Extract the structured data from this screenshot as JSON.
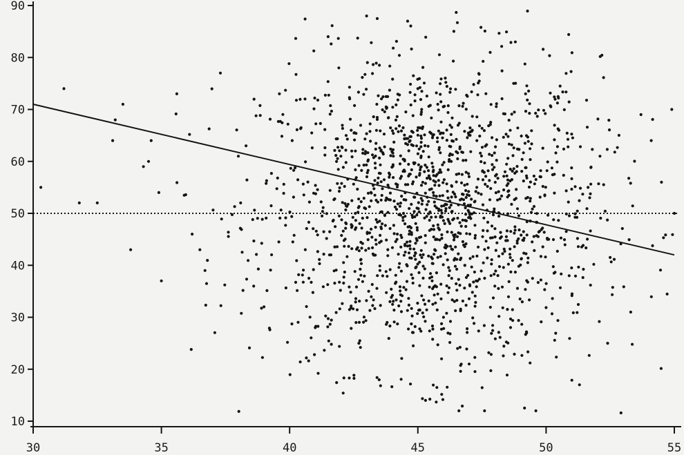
{
  "chart_data": {
    "type": "scatter",
    "title": "",
    "xlabel": "",
    "ylabel": "",
    "xlim": [
      30,
      55
    ],
    "ylim": [
      10,
      90
    ],
    "xticks": [
      "30",
      "35",
      "40",
      "45",
      "50",
      "55"
    ],
    "yticks": [
      "10",
      "20",
      "30",
      "40",
      "50",
      "60",
      "70",
      "80",
      "90"
    ],
    "grid": false,
    "legend": "none",
    "point_color": "#151515",
    "line_color": "#151515",
    "regression_line": {
      "x": [
        30,
        55
      ],
      "y": [
        71,
        42
      ]
    },
    "reference_line": {
      "y": 50,
      "style": "dotted"
    },
    "points_sample": [
      [
        30.3,
        55
      ],
      [
        31.2,
        74
      ],
      [
        31.8,
        52
      ],
      [
        32.5,
        52
      ],
      [
        33.1,
        64
      ],
      [
        33.2,
        68
      ],
      [
        33.5,
        71
      ],
      [
        33.8,
        43
      ],
      [
        34.3,
        59
      ],
      [
        34.5,
        60
      ],
      [
        34.6,
        64
      ],
      [
        34.9,
        54
      ],
      [
        35.0,
        37
      ],
      [
        35.6,
        73
      ],
      [
        36.2,
        46
      ],
      [
        36.5,
        43
      ],
      [
        36.7,
        39
      ],
      [
        37.3,
        77
      ],
      [
        38.0,
        61
      ],
      [
        38.3,
        63
      ],
      [
        38.6,
        36
      ],
      [
        39.0,
        32
      ],
      [
        39.6,
        73
      ],
      [
        40.1,
        64
      ],
      [
        40.6,
        72
      ],
      [
        41.0,
        28
      ],
      [
        41.5,
        84
      ],
      [
        42.0,
        61
      ],
      [
        42.4,
        66
      ],
      [
        42.7,
        25
      ],
      [
        43.0,
        88
      ],
      [
        43.4,
        71
      ],
      [
        43.8,
        29
      ],
      [
        44.2,
        46
      ],
      [
        44.6,
        87
      ],
      [
        45.0,
        74
      ],
      [
        45.3,
        14
      ],
      [
        45.6,
        54
      ],
      [
        46.0,
        30
      ],
      [
        46.3,
        60
      ],
      [
        46.6,
        12
      ],
      [
        47.0,
        21
      ],
      [
        47.3,
        64
      ],
      [
        47.6,
        12
      ],
      [
        48.0,
        36
      ],
      [
        48.4,
        58
      ],
      [
        48.8,
        83
      ],
      [
        49.2,
        73
      ],
      [
        49.6,
        12
      ],
      [
        50.1,
        45
      ],
      [
        50.5,
        66
      ],
      [
        50.9,
        38
      ],
      [
        51.3,
        17
      ],
      [
        51.7,
        53
      ],
      [
        52.1,
        61
      ],
      [
        52.4,
        25
      ],
      [
        53.3,
        31
      ],
      [
        53.7,
        69
      ],
      [
        54.1,
        64
      ],
      [
        54.5,
        56
      ],
      [
        54.9,
        70
      ],
      [
        55.0,
        50
      ]
    ],
    "cluster": {
      "center": [
        45.5,
        50
      ],
      "sd": [
        3.3,
        15
      ],
      "count": 1600
    }
  }
}
